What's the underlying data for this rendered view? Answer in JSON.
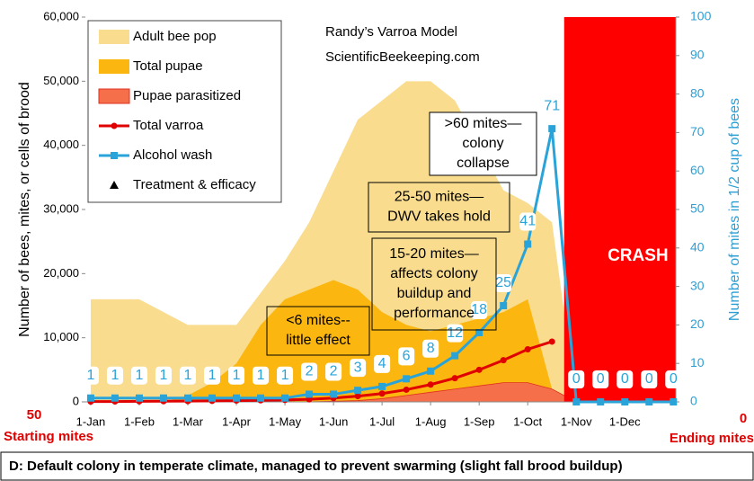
{
  "chart_data": {
    "type": "combo",
    "title": "Randy’s Varroa Model",
    "subtitle": "ScientificBeekeeping.com",
    "y_label": "Number of bees, mites, or cells of brood",
    "y2_label": "Number of mites in 1/2 cup of bees",
    "x": [
      0,
      1,
      2,
      3,
      4,
      5,
      6,
      7,
      8,
      9,
      10,
      11,
      12,
      13,
      14,
      15,
      16,
      17,
      18,
      19,
      20,
      21,
      22,
      23,
      24
    ],
    "xlim": [
      -0.22,
      24.1
    ],
    "xticks": [
      {
        "value": 0,
        "label": "1-Jan"
      },
      {
        "value": 2,
        "label": "1-Feb"
      },
      {
        "value": 4,
        "label": "1-Mar"
      },
      {
        "value": 6,
        "label": "1-Apr"
      },
      {
        "value": 8,
        "label": "1-May"
      },
      {
        "value": 10,
        "label": "1-Jun"
      },
      {
        "value": 12,
        "label": "1-Jul"
      },
      {
        "value": 14,
        "label": "1-Aug"
      },
      {
        "value": 16,
        "label": "1-Sep"
      },
      {
        "value": 18,
        "label": "1-Oct"
      },
      {
        "value": 20,
        "label": "1-Nov"
      },
      {
        "value": 22,
        "label": "1-Dec"
      }
    ],
    "ylim": [
      0,
      60000
    ],
    "yticks": [
      0,
      {
        "value": 10000,
        "label": "10,000"
      },
      {
        "value": 20000,
        "label": "20,000"
      },
      {
        "value": 30000,
        "label": "30,000"
      },
      {
        "value": 40000,
        "label": "40,000"
      },
      {
        "value": 50000,
        "label": "50,000"
      },
      {
        "value": 60000,
        "label": "60,000"
      }
    ],
    "y2lim": [
      0,
      100
    ],
    "y2ticks": [
      0,
      10,
      20,
      30,
      40,
      50,
      60,
      70,
      80,
      90,
      100
    ],
    "series": [
      {
        "name": "Adult bee pop",
        "kind": "area",
        "color": "#f9dc8e",
        "values": [
          16000,
          16000,
          16000,
          14000,
          12000,
          12000,
          12000,
          17000,
          22000,
          28000,
          36000,
          44000,
          47000,
          50000,
          50000,
          47000,
          40000,
          33000,
          31000,
          28000,
          0,
          0,
          0,
          0,
          0
        ]
      },
      {
        "name": "Total pupae",
        "kind": "area",
        "color": "#fbb710",
        "values": [
          0,
          0,
          0,
          0,
          1000,
          3000,
          6000,
          12000,
          16000,
          17500,
          19000,
          17500,
          14000,
          12000,
          11000,
          12000,
          13000,
          14000,
          16000,
          2000,
          0,
          0,
          0,
          0,
          0
        ]
      },
      {
        "name": "Pupae parasitized",
        "kind": "area",
        "color": "#f5704a",
        "values": [
          0,
          0,
          0,
          0,
          0,
          0,
          0,
          0,
          0,
          0,
          100,
          200,
          500,
          1000,
          1500,
          2000,
          2500,
          3000,
          3000,
          2000,
          0,
          0,
          0,
          0,
          0
        ]
      },
      {
        "name": "Total varroa",
        "kind": "line",
        "marker": "circle",
        "color": "#e00000",
        "values": [
          50,
          60,
          80,
          100,
          120,
          150,
          200,
          250,
          300,
          400,
          600,
          900,
          1300,
          1900,
          2700,
          3700,
          5000,
          6500,
          8200,
          9400,
          null,
          null,
          null,
          null,
          null
        ]
      },
      {
        "name": "Alcohol wash",
        "kind": "line",
        "marker": "square",
        "color": "#2aa3d8",
        "axis": "y2",
        "labels": true,
        "values": [
          1,
          1,
          1,
          1,
          1,
          1,
          1,
          1,
          1,
          2,
          2,
          3,
          4,
          6,
          8,
          12,
          18,
          25,
          41,
          71,
          0,
          0,
          0,
          0,
          0
        ]
      },
      {
        "name": "Treatment & efficacy",
        "kind": "points",
        "marker": "triangle",
        "color": "#000000",
        "values": [
          null,
          null,
          null,
          null,
          null,
          null,
          null,
          null,
          null,
          null,
          null,
          null,
          null,
          null,
          null,
          null,
          null,
          null,
          null,
          null,
          null,
          null,
          null,
          null,
          null
        ]
      }
    ],
    "crash_label": "CRASH",
    "annotations": [
      {
        "lines": [
          ">60 mites—",
          "colony",
          "collapse"
        ]
      },
      {
        "lines": [
          "25-50 mites—",
          "DWV takes hold"
        ]
      },
      {
        "lines": [
          "15-20 mites—",
          "affects colony",
          "buildup and",
          "performance"
        ]
      },
      {
        "lines": [
          "<6 mites--",
          "little effect"
        ]
      }
    ],
    "start_value": 50,
    "start_label": "Starting mites",
    "end_value": 0,
    "end_label": "Ending mites",
    "caption": "D: Default colony in temperate climate, managed to prevent swarming (slight fall brood buildup)"
  }
}
